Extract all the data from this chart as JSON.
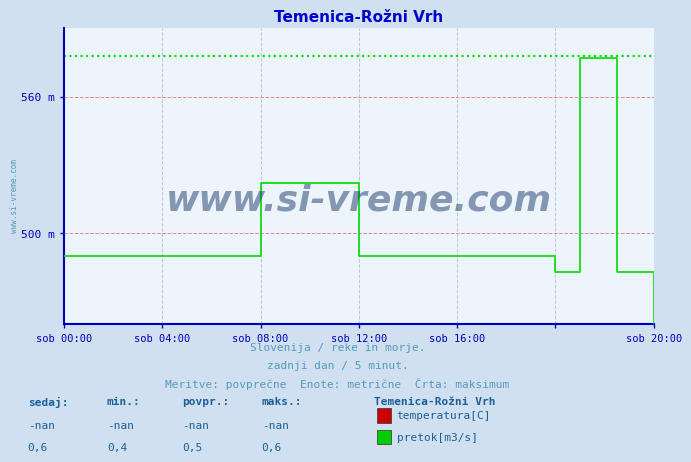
{
  "title": "Temenica-Rožni Vrh",
  "bg_color": "#d0e0f0",
  "plot_bg_color": "#eef4fc",
  "grid_color_v": "#b8c8d8",
  "grid_color_h": "#e08888",
  "axis_color": "#0000bb",
  "line_color_flow": "#00dd00",
  "line_color_max": "#00dd00",
  "title_color": "#0000cc",
  "tick_color": "#4499cc",
  "ymin": 460,
  "ymax": 590,
  "ylabel_values": [
    560,
    500
  ],
  "ylabel_labels": [
    "560 m",
    "500 m"
  ],
  "xmin": 0,
  "xmax": 288,
  "xtick_positions": [
    0,
    48,
    96,
    144,
    192,
    240,
    288
  ],
  "xtick_labels": [
    "sob 00:00",
    "sob 04:00",
    "sob 08:00",
    "sob 12:00",
    "sob 16:00",
    "",
    "sob 20:00"
  ],
  "flow_x": [
    0,
    96,
    96,
    144,
    144,
    240,
    240,
    252,
    252,
    270,
    270,
    288,
    288
  ],
  "flow_y": [
    490,
    490,
    522,
    522,
    490,
    490,
    483,
    483,
    577,
    577,
    483,
    483,
    460
  ],
  "max_line_y": 578,
  "watermark": "www.si-vreme.com",
  "footer_line1": "Slovenija / reke in morje.",
  "footer_line2": "zadnji dan / 5 minut.",
  "footer_line3": "Meritve: povprečne  Enote: metrične  Črta: maksimum",
  "legend_title": "Temenica-Rožni Vrh",
  "legend_items": [
    {
      "label": "temperatura[C]",
      "color": "#cc0000"
    },
    {
      "label": "pretok[m3/s]",
      "color": "#00cc00"
    }
  ],
  "stats_headers": [
    "sedaj:",
    "min.:",
    "povpr.:",
    "maks.:"
  ],
  "stats_temp": [
    "-nan",
    "-nan",
    "-nan",
    "-nan"
  ],
  "stats_flow": [
    "0,6",
    "0,4",
    "0,5",
    "0,6"
  ],
  "sidebar_text": "www.si-vreme.com"
}
